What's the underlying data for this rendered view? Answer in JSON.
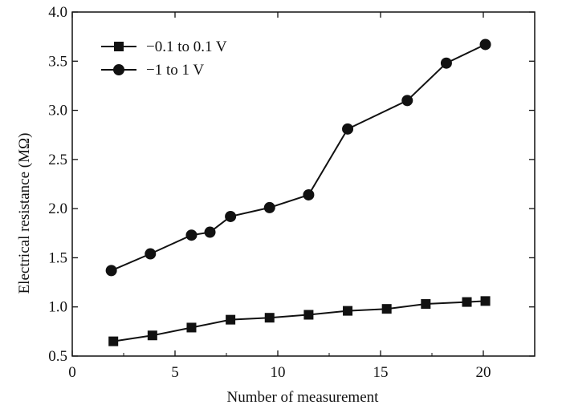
{
  "chart_data": {
    "type": "line",
    "title": "",
    "xlabel": "Number of measurement",
    "ylabel": "Electrical resistance (MΩ)",
    "xlim": [
      0,
      22.5
    ],
    "ylim": [
      0.5,
      4.0
    ],
    "xticks": [
      "0",
      "5",
      "10",
      "15",
      "20"
    ],
    "yticks": [
      "0.5",
      "1.0",
      "1.5",
      "2.0",
      "2.5",
      "3.0",
      "3.5",
      "4.0"
    ],
    "grid": false,
    "legend_position": "top-left",
    "series": [
      {
        "name": "−0.1 to 0.1 V",
        "marker": "square",
        "color": "#111111",
        "x": [
          2,
          3.9,
          5.8,
          7.7,
          9.6,
          11.5,
          13.4,
          15.3,
          17.2,
          19.2,
          20.1
        ],
        "y": [
          0.65,
          0.71,
          0.79,
          0.87,
          0.89,
          0.92,
          0.96,
          0.98,
          1.03,
          1.05,
          1.06
        ]
      },
      {
        "name": "−1 to 1 V",
        "marker": "circle",
        "color": "#111111",
        "x": [
          1.9,
          3.8,
          5.8,
          6.7,
          7.7,
          9.6,
          11.5,
          13.4,
          16.3,
          18.2,
          20.1
        ],
        "y": [
          1.37,
          1.54,
          1.73,
          1.76,
          1.92,
          2.01,
          2.14,
          2.81,
          3.1,
          3.48,
          3.67
        ]
      }
    ]
  }
}
